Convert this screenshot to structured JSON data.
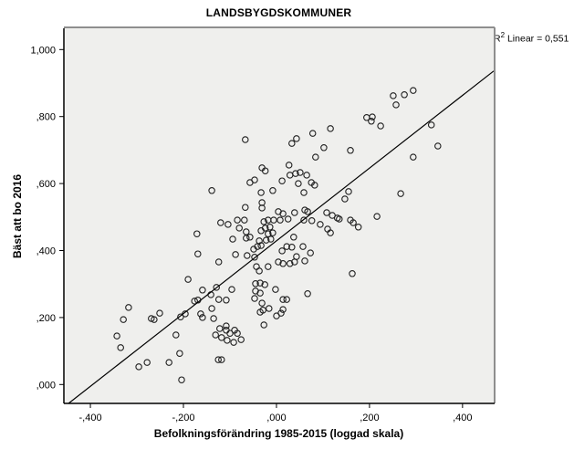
{
  "styles": {
    "plot_bg": "#efefed",
    "frame_light": "#8e8e8e",
    "frame_dark": "#000000",
    "point_stroke": "#1f1f1f",
    "line_color": "#000000",
    "tick_color": "#000000"
  },
  "chart_data": {
    "type": "scatter",
    "title": "LANDSBYGDSKOMMUNER",
    "xlabel": "Befolkningsförändring 1985-2015 (loggad skala)",
    "ylabel": "Bäst att bo 2016",
    "annotation": {
      "base": "R",
      "superscript": "2",
      "text": " Linear = 0,551"
    },
    "grid": false,
    "legend": "none",
    "xlim": [
      -0.457,
      0.467
    ],
    "ylim": [
      -0.0564,
      1.0635
    ],
    "x_ticks": {
      "values": [
        -0.4,
        -0.2,
        0.0,
        0.2,
        0.4
      ],
      "labels": [
        "-,400",
        "-,200",
        ",000",
        ",200",
        ",400"
      ]
    },
    "y_ticks": {
      "values": [
        0.0,
        0.2,
        0.4,
        0.6,
        0.8,
        1.0
      ],
      "labels": [
        ",000",
        ",200",
        ",400",
        ",600",
        ",800",
        "1,000"
      ]
    },
    "regression_line": {
      "x1": -0.447,
      "y1": -0.0564,
      "x2": 0.467,
      "y2": 0.936
    },
    "points": [
      [
        -0.067,
        0.731
      ],
      [
        0.033,
        0.72
      ],
      [
        0.043,
        0.734
      ],
      [
        0.078,
        0.75
      ],
      [
        0.116,
        0.764
      ],
      [
        0.102,
        0.707
      ],
      [
        0.159,
        0.699
      ],
      [
        0.251,
        0.862
      ],
      [
        0.275,
        0.865
      ],
      [
        0.294,
        0.878
      ],
      [
        0.257,
        0.835
      ],
      [
        0.194,
        0.797
      ],
      [
        0.206,
        0.799
      ],
      [
        0.204,
        0.786
      ],
      [
        0.224,
        0.772
      ],
      [
        0.333,
        0.775
      ],
      [
        0.347,
        0.712
      ],
      [
        -0.171,
        0.45
      ],
      [
        -0.169,
        0.39
      ],
      [
        -0.19,
        0.314
      ],
      [
        -0.031,
        0.647
      ],
      [
        -0.024,
        0.638
      ],
      [
        -0.057,
        0.603
      ],
      [
        -0.047,
        0.611
      ],
      [
        -0.139,
        0.579
      ],
      [
        -0.033,
        0.573
      ],
      [
        -0.008,
        0.579
      ],
      [
        -0.067,
        0.529
      ],
      [
        -0.031,
        0.543
      ],
      [
        -0.031,
        0.527
      ],
      [
        0.004,
        0.516
      ],
      [
        0.014,
        0.51
      ],
      [
        0.084,
        0.679
      ],
      [
        0.027,
        0.655
      ],
      [
        0.012,
        0.608
      ],
      [
        0.029,
        0.625
      ],
      [
        0.041,
        0.63
      ],
      [
        0.051,
        0.633
      ],
      [
        0.065,
        0.625
      ],
      [
        0.047,
        0.6
      ],
      [
        0.075,
        0.603
      ],
      [
        0.082,
        0.595
      ],
      [
        0.059,
        0.573
      ],
      [
        0.155,
        0.576
      ],
      [
        0.147,
        0.554
      ],
      [
        0.039,
        0.513
      ],
      [
        0.061,
        0.521
      ],
      [
        0.067,
        0.516
      ],
      [
        0.108,
        0.513
      ],
      [
        0.12,
        0.505
      ],
      [
        0.131,
        0.497
      ],
      [
        -0.12,
        0.483
      ],
      [
        -0.104,
        0.478
      ],
      [
        -0.084,
        0.491
      ],
      [
        -0.069,
        0.491
      ],
      [
        -0.08,
        0.467
      ],
      [
        -0.065,
        0.456
      ],
      [
        -0.094,
        0.434
      ],
      [
        -0.065,
        0.437
      ],
      [
        -0.057,
        0.44
      ],
      [
        -0.124,
        0.366
      ],
      [
        -0.088,
        0.388
      ],
      [
        -0.063,
        0.385
      ],
      [
        -0.047,
        0.38
      ],
      [
        -0.049,
        0.404
      ],
      [
        -0.041,
        0.412
      ],
      [
        -0.033,
        0.415
      ],
      [
        -0.037,
        0.429
      ],
      [
        -0.027,
        0.486
      ],
      [
        -0.018,
        0.491
      ],
      [
        -0.006,
        0.491
      ],
      [
        -0.024,
        0.467
      ],
      [
        -0.014,
        0.47
      ],
      [
        -0.033,
        0.459
      ],
      [
        -0.018,
        0.45
      ],
      [
        -0.008,
        0.453
      ],
      [
        -0.022,
        0.431
      ],
      [
        -0.012,
        0.434
      ],
      [
        0.008,
        0.491
      ],
      [
        0.025,
        0.494
      ],
      [
        0.037,
        0.44
      ],
      [
        0.022,
        0.412
      ],
      [
        0.033,
        0.41
      ],
      [
        0.012,
        0.399
      ],
      [
        0.004,
        0.366
      ],
      [
        0.014,
        0.361
      ],
      [
        0.029,
        0.361
      ],
      [
        0.039,
        0.366
      ],
      [
        0.043,
        0.382
      ],
      [
        0.057,
        0.412
      ],
      [
        -0.043,
        0.352
      ],
      [
        -0.037,
        0.339
      ],
      [
        -0.018,
        0.352
      ],
      [
        0.076,
        0.489
      ],
      [
        0.059,
        0.491
      ],
      [
        0.094,
        0.478
      ],
      [
        0.11,
        0.464
      ],
      [
        0.116,
        0.453
      ],
      [
        0.135,
        0.494
      ],
      [
        0.159,
        0.491
      ],
      [
        0.073,
        0.393
      ],
      [
        0.061,
        0.369
      ],
      [
        0.163,
        0.331
      ],
      [
        0.294,
        0.679
      ],
      [
        0.267,
        0.57
      ],
      [
        0.216,
        0.502
      ],
      [
        0.165,
        0.483
      ],
      [
        0.176,
        0.47
      ],
      [
        -0.129,
        0.29
      ],
      [
        -0.096,
        0.284
      ],
      [
        -0.141,
        0.268
      ],
      [
        -0.124,
        0.254
      ],
      [
        -0.108,
        0.252
      ],
      [
        -0.139,
        0.227
      ],
      [
        -0.135,
        0.197
      ],
      [
        -0.122,
        0.167
      ],
      [
        -0.108,
        0.175
      ],
      [
        -0.131,
        0.148
      ],
      [
        -0.118,
        0.14
      ],
      [
        -0.108,
        0.162
      ],
      [
        -0.1,
        0.153
      ],
      [
        -0.09,
        0.162
      ],
      [
        -0.084,
        0.153
      ],
      [
        -0.106,
        0.132
      ],
      [
        -0.092,
        0.126
      ],
      [
        -0.076,
        0.134
      ],
      [
        -0.125,
        0.074
      ],
      [
        -0.118,
        0.074
      ],
      [
        -0.045,
        0.301
      ],
      [
        -0.035,
        0.303
      ],
      [
        -0.025,
        0.298
      ],
      [
        -0.045,
        0.279
      ],
      [
        -0.035,
        0.273
      ],
      [
        -0.047,
        0.257
      ],
      [
        -0.031,
        0.243
      ],
      [
        -0.035,
        0.216
      ],
      [
        -0.029,
        0.222
      ],
      [
        -0.002,
        0.284
      ],
      [
        0.014,
        0.254
      ],
      [
        0.022,
        0.254
      ],
      [
        -0.016,
        0.227
      ],
      [
        0.0,
        0.205
      ],
      [
        0.01,
        0.213
      ],
      [
        0.014,
        0.224
      ],
      [
        -0.027,
        0.178
      ],
      [
        0.067,
        0.271
      ],
      [
        -0.159,
        0.282
      ],
      [
        -0.318,
        0.23
      ],
      [
        -0.329,
        0.194
      ],
      [
        -0.269,
        0.197
      ],
      [
        -0.263,
        0.194
      ],
      [
        -0.251,
        0.213
      ],
      [
        -0.343,
        0.145
      ],
      [
        -0.335,
        0.11
      ],
      [
        -0.206,
        0.202
      ],
      [
        -0.196,
        0.211
      ],
      [
        -0.176,
        0.249
      ],
      [
        -0.169,
        0.252
      ],
      [
        -0.163,
        0.211
      ],
      [
        -0.159,
        0.2
      ],
      [
        -0.216,
        0.148
      ],
      [
        -0.208,
        0.093
      ],
      [
        -0.231,
        0.066
      ],
      [
        -0.296,
        0.053
      ],
      [
        -0.278,
        0.066
      ],
      [
        -0.204,
        0.014
      ]
    ]
  }
}
